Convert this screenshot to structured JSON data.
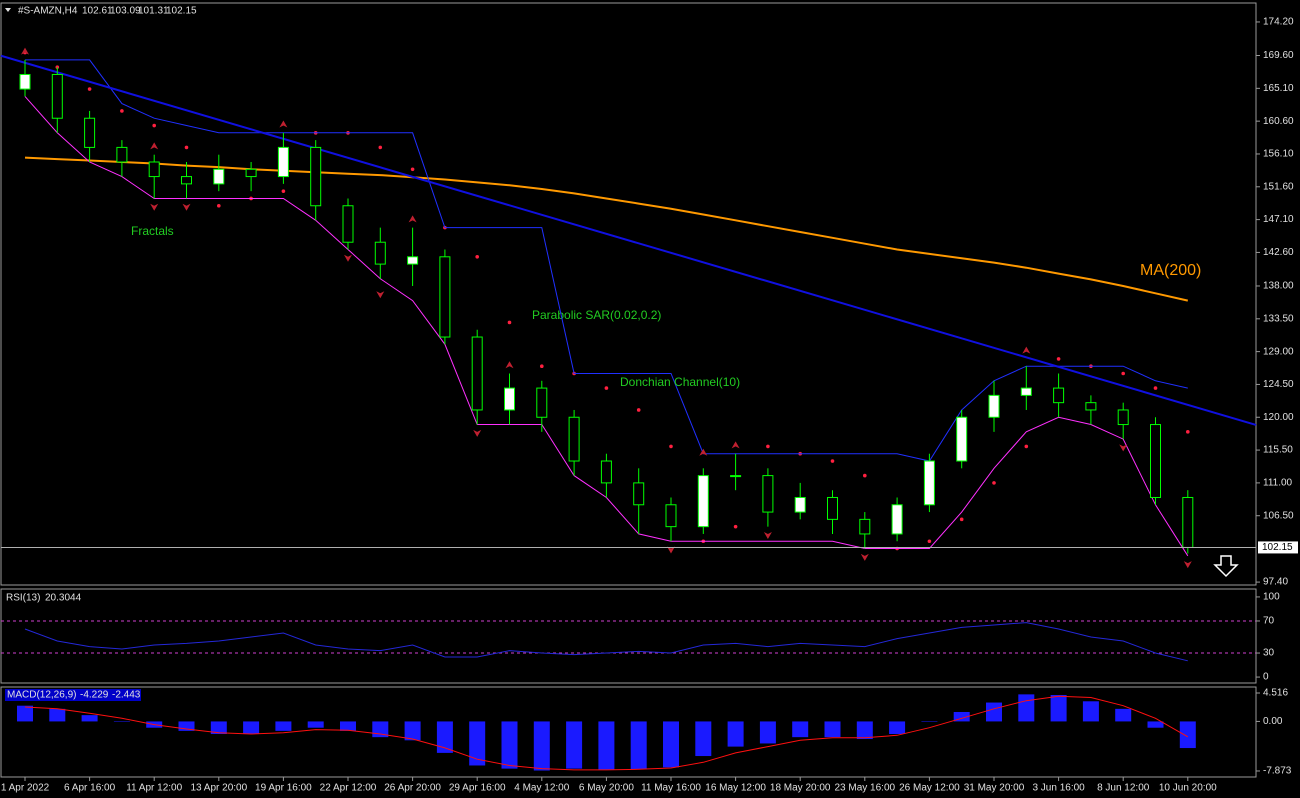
{
  "chart_data": [
    {
      "type": "candlestick",
      "title": "#S-AMZN,H4",
      "header_values": [
        102.61,
        103.09,
        101.31,
        102.15
      ],
      "categories": [
        "1 Apr 2022",
        null,
        "6 Apr 16:00",
        null,
        "11 Apr 12:00",
        null,
        "13 Apr 20:00",
        null,
        "19 Apr 16:00",
        null,
        "22 Apr 12:00",
        null,
        "26 Apr 20:00",
        null,
        "29 Apr 16:00",
        null,
        "4 May 12:00",
        null,
        "6 May 20:00",
        null,
        "11 May 16:00",
        null,
        "16 May 12:00",
        null,
        "18 May 20:00",
        null,
        "23 May 16:00",
        null,
        "26 May 12:00",
        null,
        "31 May 20:00",
        null,
        "3 Jun 16:00",
        null,
        "8 Jun 12:00",
        null,
        "10 Jun 20:00"
      ],
      "ohlc": [
        [
          165,
          169,
          164,
          167
        ],
        [
          167,
          168,
          159,
          161
        ],
        [
          161,
          162,
          155,
          157
        ],
        [
          157,
          158,
          153,
          155
        ],
        [
          155,
          156,
          150,
          153
        ],
        [
          153,
          155,
          150,
          152
        ],
        [
          152,
          156,
          151,
          154
        ],
        [
          154,
          155,
          151,
          153
        ],
        [
          153,
          159,
          152,
          157
        ],
        [
          157,
          158,
          147,
          149
        ],
        [
          149,
          150,
          143,
          144
        ],
        [
          144,
          146,
          139,
          141
        ],
        [
          141,
          146,
          138,
          142
        ],
        [
          142,
          143,
          130,
          131
        ],
        [
          131,
          132,
          119,
          121
        ],
        [
          121,
          126,
          119,
          124
        ],
        [
          124,
          125,
          118,
          120
        ],
        [
          120,
          121,
          112,
          114
        ],
        [
          114,
          115,
          109,
          111
        ],
        [
          111,
          113,
          104,
          108
        ],
        [
          108,
          109,
          103,
          105
        ],
        [
          105,
          113,
          104,
          112
        ],
        [
          112,
          115,
          110,
          112
        ],
        [
          112,
          113,
          105,
          107
        ],
        [
          107,
          111,
          106,
          109
        ],
        [
          109,
          110,
          104,
          106
        ],
        [
          106,
          107,
          102,
          104
        ],
        [
          104,
          109,
          103,
          108
        ],
        [
          108,
          115,
          107,
          114
        ],
        [
          114,
          121,
          113,
          120
        ],
        [
          120,
          125,
          118,
          123
        ],
        [
          123,
          127,
          121,
          124
        ],
        [
          124,
          126,
          120,
          122
        ],
        [
          122,
          123,
          119,
          121
        ],
        [
          121,
          122,
          117,
          119
        ],
        [
          119,
          120,
          108,
          109
        ],
        [
          109,
          110,
          101.31,
          102.15
        ]
      ],
      "up_color": "#ffffff",
      "down_color": "#000000",
      "wick_color": "#00ff00",
      "series": [
        {
          "name": "MA(200)",
          "style": "line",
          "color": "#ff9900",
          "label_color": "#ff9900",
          "values": [
            155.6,
            155.4,
            155.2,
            155.0,
            154.8,
            154.5,
            154.3,
            154.0,
            153.8,
            153.6,
            153.4,
            153.2,
            152.9,
            152.6,
            152.2,
            151.8,
            151.3,
            150.7,
            150.0,
            149.3,
            148.6,
            147.8,
            147.0,
            146.2,
            145.4,
            144.6,
            143.8,
            143.0,
            142.4,
            141.8,
            141.2,
            140.5,
            139.7,
            138.9,
            138.0,
            137.0,
            136.0
          ]
        },
        {
          "name": "Parabolic SAR(0.02,0.2)",
          "style": "dots",
          "color": "#ff2040",
          "label_color": "#22cc22",
          "values": [
            170,
            168,
            165,
            162,
            160,
            157,
            149,
            150,
            151,
            159,
            159,
            157,
            154,
            146,
            142,
            133,
            127,
            126,
            124,
            121,
            116,
            103,
            105,
            116,
            115,
            114,
            112,
            102,
            103,
            106,
            111,
            116,
            128,
            127,
            126,
            124,
            118
          ]
        },
        {
          "name": "Donchian Channel(10)",
          "style": "channel",
          "color": "#2030ff",
          "lower_color": "#ff30ff",
          "label_color": "#22cc22",
          "values": [
            169,
            169,
            169,
            163,
            161,
            160,
            159,
            159,
            159,
            159,
            159,
            159,
            159,
            146,
            146,
            146,
            146,
            126,
            126,
            126,
            126,
            115,
            115,
            115,
            115,
            115,
            115,
            115,
            114,
            121,
            125,
            127,
            127,
            127,
            127,
            125,
            124
          ],
          "lower": [
            164,
            159,
            155,
            153,
            150,
            150,
            150,
            150,
            150,
            147,
            143,
            139,
            136,
            130,
            119,
            119,
            119,
            112,
            109,
            104,
            103,
            103,
            103,
            103,
            103,
            103,
            102,
            102,
            102,
            107,
            113,
            118,
            120,
            119,
            117,
            108,
            101
          ]
        },
        {
          "name": "Fractals",
          "style": "arrows",
          "color": "#c02030",
          "label_color": "#22cc22",
          "values": [
            170,
            null,
            null,
            null,
            157,
            null,
            null,
            null,
            160,
            null,
            null,
            null,
            147,
            null,
            null,
            127,
            null,
            null,
            null,
            null,
            null,
            115,
            116,
            null,
            null,
            null,
            null,
            null,
            null,
            null,
            null,
            129,
            null,
            null,
            null,
            null,
            null
          ],
          "lower": [
            null,
            null,
            null,
            null,
            149,
            149,
            null,
            null,
            null,
            null,
            142,
            137,
            null,
            null,
            118,
            null,
            null,
            null,
            null,
            null,
            102,
            null,
            null,
            104,
            null,
            null,
            101,
            null,
            null,
            null,
            null,
            null,
            null,
            null,
            116,
            null,
            100
          ]
        }
      ],
      "trendline": {
        "color": "#1010e0",
        "values": [
          168.6,
          121.7
        ]
      },
      "ylim": [
        97.0,
        176.8
      ],
      "yticks": [
        {
          "value": 174.2,
          "label": "174.20"
        },
        {
          "value": 169.6,
          "label": "169.60"
        },
        {
          "value": 165.1,
          "label": "165.10"
        },
        {
          "value": 160.6,
          "label": "160.60"
        },
        {
          "value": 156.1,
          "label": "156.10"
        },
        {
          "value": 151.6,
          "label": "151.60"
        },
        {
          "value": 147.1,
          "label": "147.10"
        },
        {
          "value": 142.6,
          "label": "142.60"
        },
        {
          "value": 138.0,
          "label": "138.00"
        },
        {
          "value": 133.5,
          "label": "133.50"
        },
        {
          "value": 129.0,
          "label": "129.00"
        },
        {
          "value": 124.5,
          "label": "124.50"
        },
        {
          "value": 120.0,
          "label": "120.00"
        },
        {
          "value": 115.5,
          "label": "115.50"
        },
        {
          "value": 111.0,
          "label": "111.00"
        },
        {
          "value": 106.5,
          "label": "106.50"
        },
        {
          "value": 97.4,
          "label": "97.40"
        }
      ]
    },
    {
      "type": "line",
      "title": "RSI(13)",
      "color": "#2428d8",
      "level_color": "#d040d0",
      "values": [
        60,
        45,
        38,
        35,
        40,
        42,
        45,
        50,
        55,
        40,
        35,
        33,
        40,
        25,
        25,
        33,
        30,
        28,
        30,
        32,
        30,
        40,
        42,
        38,
        42,
        40,
        38,
        48,
        55,
        62,
        65,
        68,
        60,
        50,
        45,
        30,
        20.3044
      ],
      "levels": [
        70,
        30
      ],
      "ylim": [
        -7.4,
        109.9
      ],
      "yticks": [
        100,
        70,
        30,
        0
      ]
    },
    {
      "type": "macd",
      "title": "MACD(12,26,9)",
      "color": "#1a1aff",
      "values": [
        2.5,
        2.0,
        1.0,
        0.0,
        -1.0,
        -1.5,
        -2.0,
        -2.0,
        -1.5,
        -1.0,
        -1.5,
        -2.5,
        -3.0,
        -5.0,
        -7.0,
        -7.5,
        -7.8,
        -7.5,
        -7.7,
        -7.6,
        -7.3,
        -5.5,
        -4.0,
        -3.5,
        -2.5,
        -2.5,
        -2.8,
        -2.0,
        0.0,
        1.5,
        3.0,
        4.3,
        4.2,
        3.2,
        2.0,
        -1.0,
        -4.229
      ],
      "signal": {
        "color": "#ff1010",
        "values": [
          2.3,
          2.0,
          1.3,
          0.5,
          -0.5,
          -1.2,
          -1.8,
          -2.0,
          -1.8,
          -1.3,
          -1.4,
          -2.0,
          -2.8,
          -4.2,
          -6.0,
          -7.0,
          -7.5,
          -7.7,
          -7.7,
          -7.6,
          -7.4,
          -6.5,
          -5.0,
          -4.0,
          -3.0,
          -2.6,
          -2.6,
          -2.2,
          -1.0,
          0.5,
          2.0,
          3.3,
          4.0,
          3.8,
          2.5,
          0.5,
          -2.443
        ]
      },
      "ylim": [
        -8.83,
        5.47
      ],
      "yticks": [
        4.516,
        {
          "value": 0,
          "label": "0.00"
        },
        -7.873
      ]
    }
  ]
}
